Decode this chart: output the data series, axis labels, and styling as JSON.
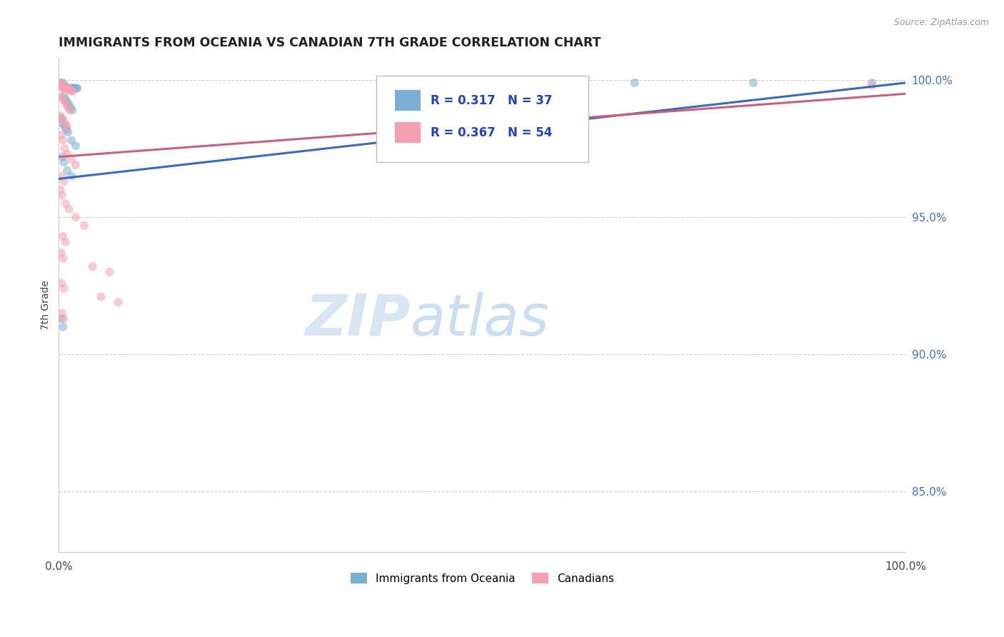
{
  "title": "IMMIGRANTS FROM OCEANIA VS CANADIAN 7TH GRADE CORRELATION CHART",
  "source_text": "Source: ZipAtlas.com",
  "ylabel": "7th Grade",
  "ytick_labels": [
    "100.0%",
    "95.0%",
    "90.0%",
    "85.0%"
  ],
  "ytick_values": [
    1.0,
    0.95,
    0.9,
    0.85
  ],
  "legend1_label": "Immigrants from Oceania",
  "legend2_label": "Canadians",
  "r_blue": 0.317,
  "n_blue": 37,
  "r_pink": 0.367,
  "n_pink": 54,
  "blue_color": "#7bafd4",
  "pink_color": "#f4a0b0",
  "blue_line_color": "#3a6abf",
  "pink_line_color": "#c96080",
  "blue_scatter": [
    [
      0.005,
      0.999
    ],
    [
      0.007,
      0.998
    ],
    [
      0.009,
      0.997
    ],
    [
      0.01,
      0.997
    ],
    [
      0.011,
      0.997
    ],
    [
      0.012,
      0.997
    ],
    [
      0.013,
      0.997
    ],
    [
      0.014,
      0.997
    ],
    [
      0.015,
      0.997
    ],
    [
      0.016,
      0.997
    ],
    [
      0.017,
      0.997
    ],
    [
      0.018,
      0.997
    ],
    [
      0.019,
      0.997
    ],
    [
      0.021,
      0.997
    ],
    [
      0.022,
      0.997
    ],
    [
      0.006,
      0.994
    ],
    [
      0.008,
      0.993
    ],
    [
      0.01,
      0.992
    ],
    [
      0.012,
      0.991
    ],
    [
      0.014,
      0.99
    ],
    [
      0.016,
      0.989
    ],
    [
      0.003,
      0.986
    ],
    [
      0.005,
      0.984
    ],
    [
      0.007,
      0.983
    ],
    [
      0.009,
      0.982
    ],
    [
      0.011,
      0.981
    ],
    [
      0.015,
      0.978
    ],
    [
      0.02,
      0.976
    ],
    [
      0.004,
      0.972
    ],
    [
      0.006,
      0.97
    ],
    [
      0.01,
      0.967
    ],
    [
      0.015,
      0.965
    ],
    [
      0.003,
      0.913
    ],
    [
      0.005,
      0.91
    ],
    [
      0.68,
      0.999
    ],
    [
      0.82,
      0.999
    ],
    [
      0.96,
      0.999
    ]
  ],
  "pink_scatter": [
    [
      0.001,
      0.999
    ],
    [
      0.002,
      0.999
    ],
    [
      0.003,
      0.999
    ],
    [
      0.004,
      0.998
    ],
    [
      0.005,
      0.997
    ],
    [
      0.006,
      0.997
    ],
    [
      0.007,
      0.997
    ],
    [
      0.008,
      0.997
    ],
    [
      0.009,
      0.997
    ],
    [
      0.01,
      0.997
    ],
    [
      0.011,
      0.997
    ],
    [
      0.012,
      0.997
    ],
    [
      0.013,
      0.996
    ],
    [
      0.015,
      0.996
    ],
    [
      0.017,
      0.996
    ],
    [
      0.003,
      0.994
    ],
    [
      0.005,
      0.993
    ],
    [
      0.007,
      0.992
    ],
    [
      0.009,
      0.991
    ],
    [
      0.011,
      0.99
    ],
    [
      0.013,
      0.989
    ],
    [
      0.002,
      0.987
    ],
    [
      0.004,
      0.986
    ],
    [
      0.006,
      0.985
    ],
    [
      0.008,
      0.984
    ],
    [
      0.01,
      0.983
    ],
    [
      0.003,
      0.98
    ],
    [
      0.005,
      0.978
    ],
    [
      0.007,
      0.975
    ],
    [
      0.01,
      0.973
    ],
    [
      0.015,
      0.971
    ],
    [
      0.02,
      0.969
    ],
    [
      0.004,
      0.965
    ],
    [
      0.006,
      0.963
    ],
    [
      0.002,
      0.96
    ],
    [
      0.004,
      0.958
    ],
    [
      0.008,
      0.955
    ],
    [
      0.012,
      0.953
    ],
    [
      0.02,
      0.95
    ],
    [
      0.03,
      0.947
    ],
    [
      0.005,
      0.943
    ],
    [
      0.008,
      0.941
    ],
    [
      0.003,
      0.937
    ],
    [
      0.005,
      0.935
    ],
    [
      0.04,
      0.932
    ],
    [
      0.06,
      0.93
    ],
    [
      0.003,
      0.926
    ],
    [
      0.006,
      0.924
    ],
    [
      0.05,
      0.921
    ],
    [
      0.07,
      0.919
    ],
    [
      0.004,
      0.915
    ],
    [
      0.006,
      0.913
    ],
    [
      0.96,
      0.998
    ],
    [
      0.5,
      0.996
    ]
  ],
  "blue_line_y_at_0": 0.964,
  "blue_line_y_at_1": 0.999,
  "pink_line_y_at_0": 0.972,
  "pink_line_y_at_1": 0.995,
  "xmin": 0.0,
  "xmax": 1.0,
  "ymin": 0.828,
  "ymax": 1.008,
  "watermark_zip": "ZIP",
  "watermark_atlas": "atlas",
  "marker_size": 75,
  "marker_alpha": 0.55,
  "line_width": 2.2
}
